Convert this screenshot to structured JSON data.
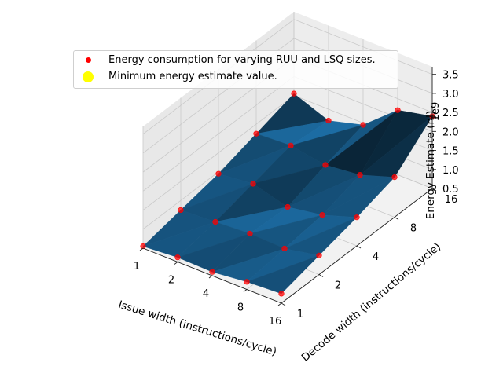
{
  "chart_data": {
    "type": "surface3d",
    "title": "",
    "xlabel": "Issue width (instructions/cycle)",
    "ylabel": "Decode width (instructions/cycle)",
    "zlabel": "Energy Estimate (nJ)",
    "z_offset_text": "1e9",
    "x_ticks": [
      "1",
      "2",
      "4",
      "8",
      "16"
    ],
    "y_ticks": [
      "1",
      "2",
      "4",
      "8",
      "16"
    ],
    "z_ticks": [
      "0.5",
      "1.0",
      "1.5",
      "2.0",
      "2.5",
      "3.0",
      "3.5"
    ],
    "zlim": [
      0.5,
      3.7
    ],
    "grid": true,
    "legend_position": "top-left",
    "legend": [
      {
        "label": "Energy consumption for varying RUU and LSQ sizes.",
        "color": "#ff0000"
      },
      {
        "label": "Minimum energy estimate value.",
        "color": "#ffff00"
      }
    ],
    "surface_color": "#1f77b4",
    "points": [
      {
        "x": 1,
        "y": 1,
        "z": 0.55
      },
      {
        "x": 1,
        "y": 2,
        "z": 0.75
      },
      {
        "x": 1,
        "y": 4,
        "z": 0.95
      },
      {
        "x": 1,
        "y": 8,
        "z": 1.25
      },
      {
        "x": 1,
        "y": 16,
        "z": 1.55
      },
      {
        "x": 2,
        "y": 1,
        "z": 0.62
      },
      {
        "x": 2,
        "y": 2,
        "z": 0.8
      },
      {
        "x": 2,
        "y": 4,
        "z": 1.05
      },
      {
        "x": 2,
        "y": 8,
        "z": 1.3
      },
      {
        "x": 2,
        "y": 16,
        "z": 1.2
      },
      {
        "x": 4,
        "y": 1,
        "z": 0.6
      },
      {
        "x": 4,
        "y": 2,
        "z": 0.85
      },
      {
        "x": 4,
        "y": 4,
        "z": 0.8
      },
      {
        "x": 4,
        "y": 8,
        "z": 1.15
      },
      {
        "x": 4,
        "y": 16,
        "z": 1.45
      },
      {
        "x": 8,
        "y": 1,
        "z": 0.7
      },
      {
        "x": 8,
        "y": 2,
        "z": 0.82
      },
      {
        "x": 8,
        "y": 4,
        "z": 0.95
      },
      {
        "x": 8,
        "y": 8,
        "z": 1.25
      },
      {
        "x": 8,
        "y": 16,
        "z": 2.2
      },
      {
        "x": 16,
        "y": 1,
        "z": 0.75
      },
      {
        "x": 16,
        "y": 2,
        "z": 1.0
      },
      {
        "x": 16,
        "y": 4,
        "z": 1.25
      },
      {
        "x": 16,
        "y": 8,
        "z": 1.55
      },
      {
        "x": 16,
        "y": 16,
        "z": 2.4
      }
    ]
  }
}
